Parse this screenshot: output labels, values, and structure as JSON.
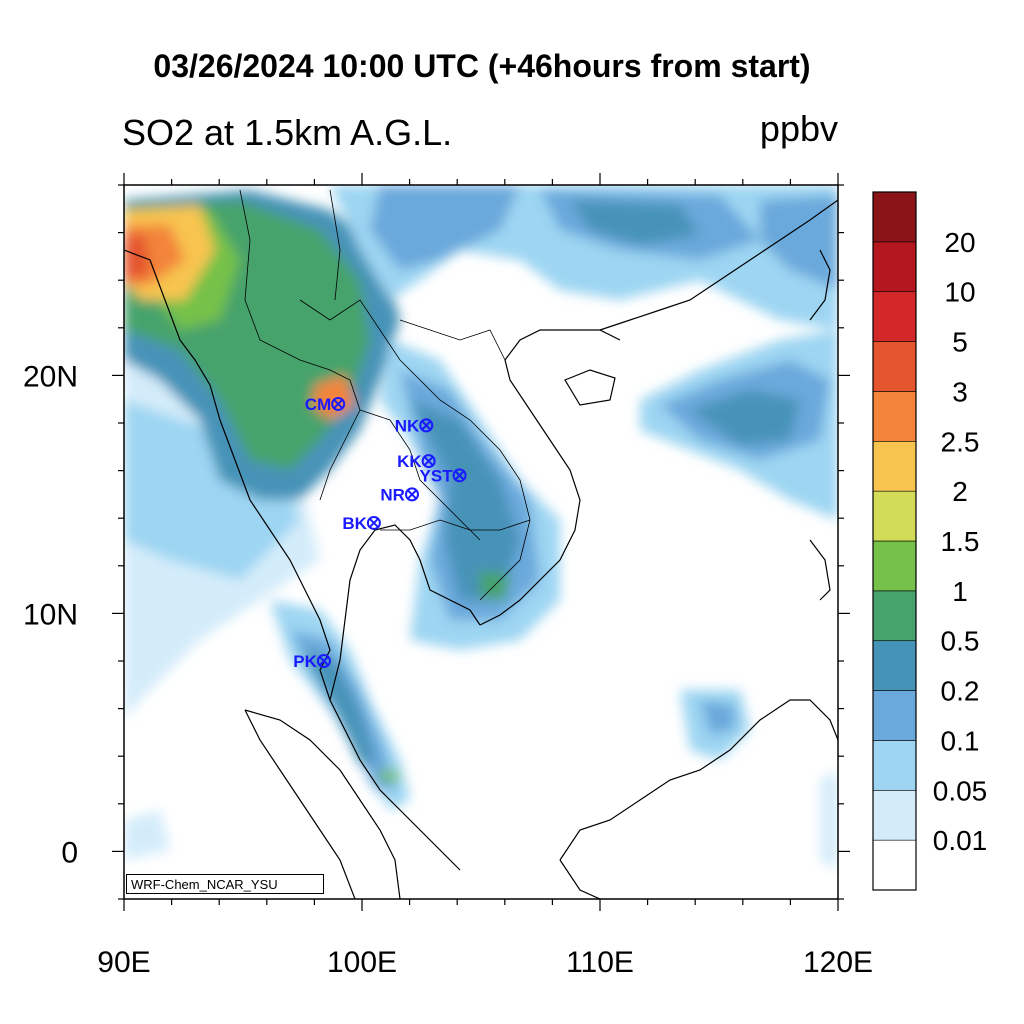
{
  "title": "03/26/2024 10:00 UTC (+46hours from start)",
  "subtitle": "SO2 at 1.5km A.G.L.",
  "units": "ppbv",
  "credit": "WRF-Chem_NCAR_YSU",
  "map": {
    "lon_range": [
      90,
      120
    ],
    "lat_range": [
      -2,
      28
    ],
    "x_ticks": [
      {
        "lon": 90,
        "label": "90E"
      },
      {
        "lon": 100,
        "label": "100E"
      },
      {
        "lon": 110,
        "label": "110E"
      },
      {
        "lon": 120,
        "label": "120E"
      }
    ],
    "y_ticks": [
      {
        "lat": 0,
        "label": "0"
      },
      {
        "lat": 10,
        "label": "10N"
      },
      {
        "lat": 20,
        "label": "20N"
      }
    ]
  },
  "colorbar": {
    "levels": [
      "0.01",
      "0.05",
      "0.1",
      "0.2",
      "0.5",
      "1",
      "1.5",
      "2",
      "2.5",
      "3",
      "5",
      "10",
      "20"
    ],
    "colors": [
      "#ffffff",
      "#d4ecfa",
      "#9dd5f2",
      "#6aa9dc",
      "#4693b8",
      "#46a36c",
      "#76c14a",
      "#d2dc56",
      "#f8c450",
      "#f3843a",
      "#e4552d",
      "#d3282a",
      "#b4171d",
      "#8b1419"
    ]
  },
  "stations": [
    {
      "code": "CM",
      "lon": 99.0,
      "lat": 18.8
    },
    {
      "code": "NK",
      "lon": 102.7,
      "lat": 17.9
    },
    {
      "code": "KK",
      "lon": 102.8,
      "lat": 16.4
    },
    {
      "code": "YST",
      "lon": 104.1,
      "lat": 15.8
    },
    {
      "code": "NR",
      "lon": 102.1,
      "lat": 15.0
    },
    {
      "code": "BK",
      "lon": 100.5,
      "lat": 13.8
    },
    {
      "code": "PK",
      "lon": 98.4,
      "lat": 8.0
    }
  ]
}
